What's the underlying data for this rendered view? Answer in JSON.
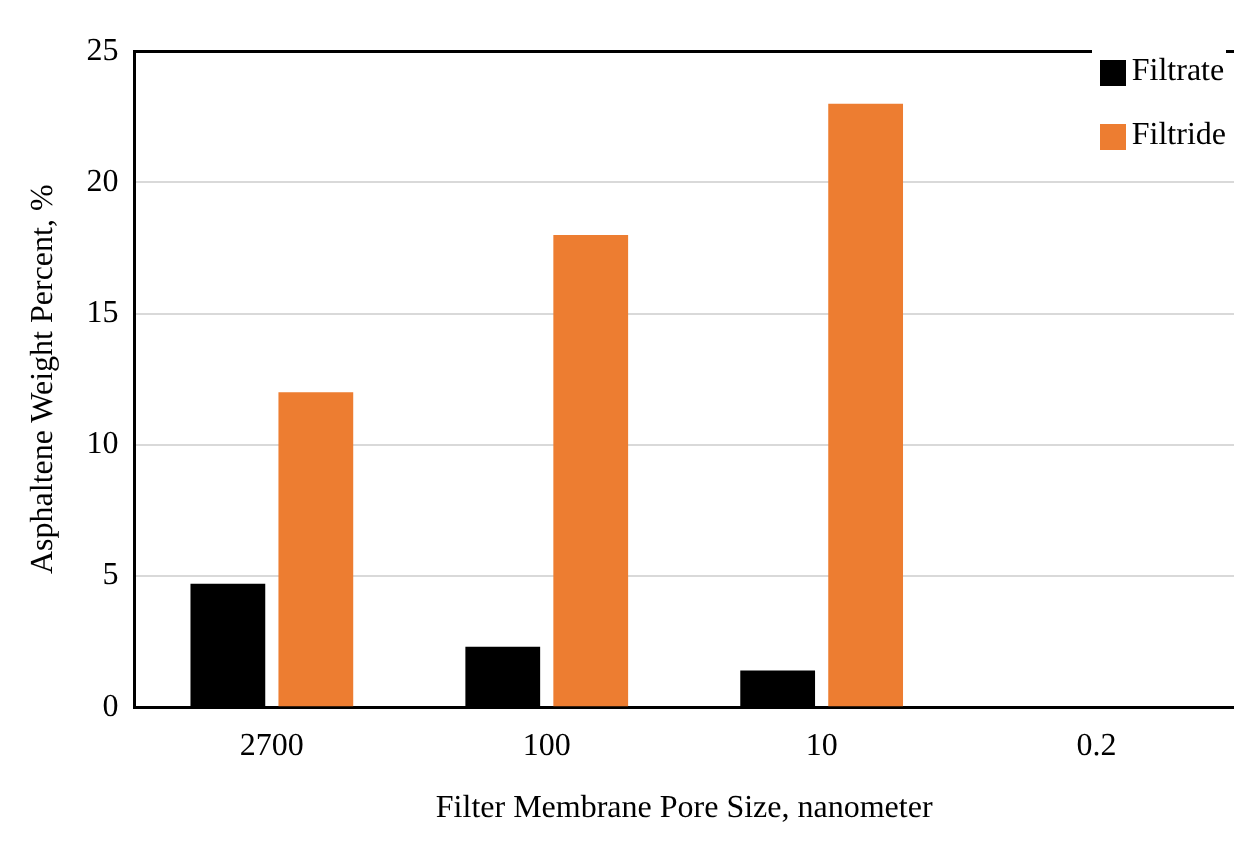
{
  "chart_data": {
    "type": "bar",
    "xlabel": "Filter Membrane Pore Size, nanometer",
    "ylabel": "Asphaltene Weight Percent, %",
    "categories": [
      "2700",
      "100",
      "10",
      "0.2"
    ],
    "series": [
      {
        "name": "Filtrate",
        "color": "#000000",
        "values": [
          4.7,
          2.3,
          1.4,
          null
        ]
      },
      {
        "name": "Filtride",
        "color": "#ed7d31",
        "values": [
          12,
          18,
          23,
          null
        ]
      }
    ],
    "ylim": [
      0,
      25
    ],
    "yticks": [
      0,
      5,
      10,
      15,
      20,
      25
    ],
    "grid": "y",
    "legend": "top right"
  }
}
